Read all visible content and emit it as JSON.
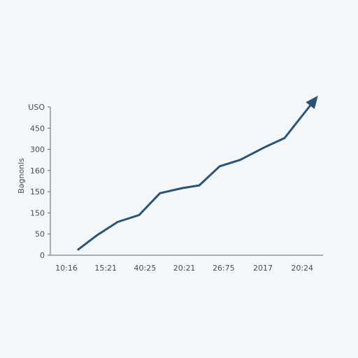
{
  "colors": {
    "background": "#f4f7fa",
    "axis": "#5a6470",
    "series_line": "#2b5373",
    "text": "#444b53"
  },
  "chart_data": {
    "type": "line",
    "title": "",
    "xlabel": "",
    "ylabel": "Bəgnonls",
    "y_axis_top_label": "USO",
    "x_tick_labels": [
      "10:16",
      "15:21",
      "40:25",
      "20:21",
      "26:75",
      "2017",
      "20:24"
    ],
    "y_ticks": [
      {
        "label": "0",
        "position": 0
      },
      {
        "label": "50",
        "position": 1
      },
      {
        "label": "150",
        "position": 2
      },
      {
        "label": "150",
        "position": 3
      },
      {
        "label": "160",
        "position": 4
      },
      {
        "label": "300",
        "position": 5
      },
      {
        "label": "450",
        "position": 6
      },
      {
        "label": "USO",
        "position": 7
      }
    ],
    "ylim": [
      0,
      7
    ],
    "grid": false,
    "legend": "none",
    "series": [
      {
        "points": [
          {
            "x": 0.3,
            "y": 0.27
          },
          {
            "x": 0.8,
            "y": 0.97
          },
          {
            "x": 1.3,
            "y": 1.57
          },
          {
            "x": 1.85,
            "y": 1.9
          },
          {
            "x": 2.38,
            "y": 2.93
          },
          {
            "x": 2.95,
            "y": 3.17
          },
          {
            "x": 3.38,
            "y": 3.3
          },
          {
            "x": 3.9,
            "y": 4.2
          },
          {
            "x": 4.42,
            "y": 4.5
          },
          {
            "x": 5.08,
            "y": 5.13
          },
          {
            "x": 5.55,
            "y": 5.53
          },
          {
            "x": 6.4,
            "y": 7.53
          }
        ],
        "end_marker": "arrow"
      }
    ]
  }
}
